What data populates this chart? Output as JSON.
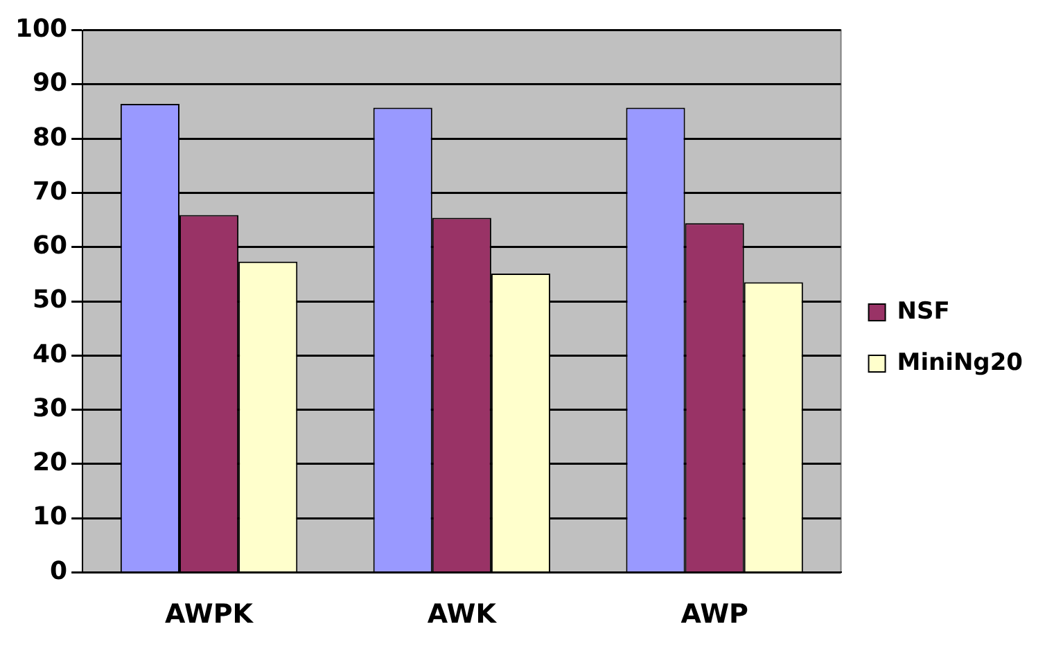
{
  "chart_data": {
    "type": "bar",
    "categories": [
      "AWPK",
      "AWK",
      "AWP"
    ],
    "series": [
      {
        "color": "#9999ff",
        "values": [
          86.4,
          85.7,
          85.7
        ]
      },
      {
        "name": "NSF",
        "color": "#993366",
        "values": [
          65.9,
          65.4,
          64.4
        ]
      },
      {
        "name": "MiniNg20",
        "color": "#ffffcc",
        "values": [
          57.3,
          55.1,
          53.5
        ]
      }
    ],
    "ylim": [
      0,
      100
    ],
    "yticks": [
      0,
      10,
      20,
      30,
      40,
      50,
      60,
      70,
      80,
      90,
      100
    ],
    "grid": "y",
    "legend": "right"
  }
}
